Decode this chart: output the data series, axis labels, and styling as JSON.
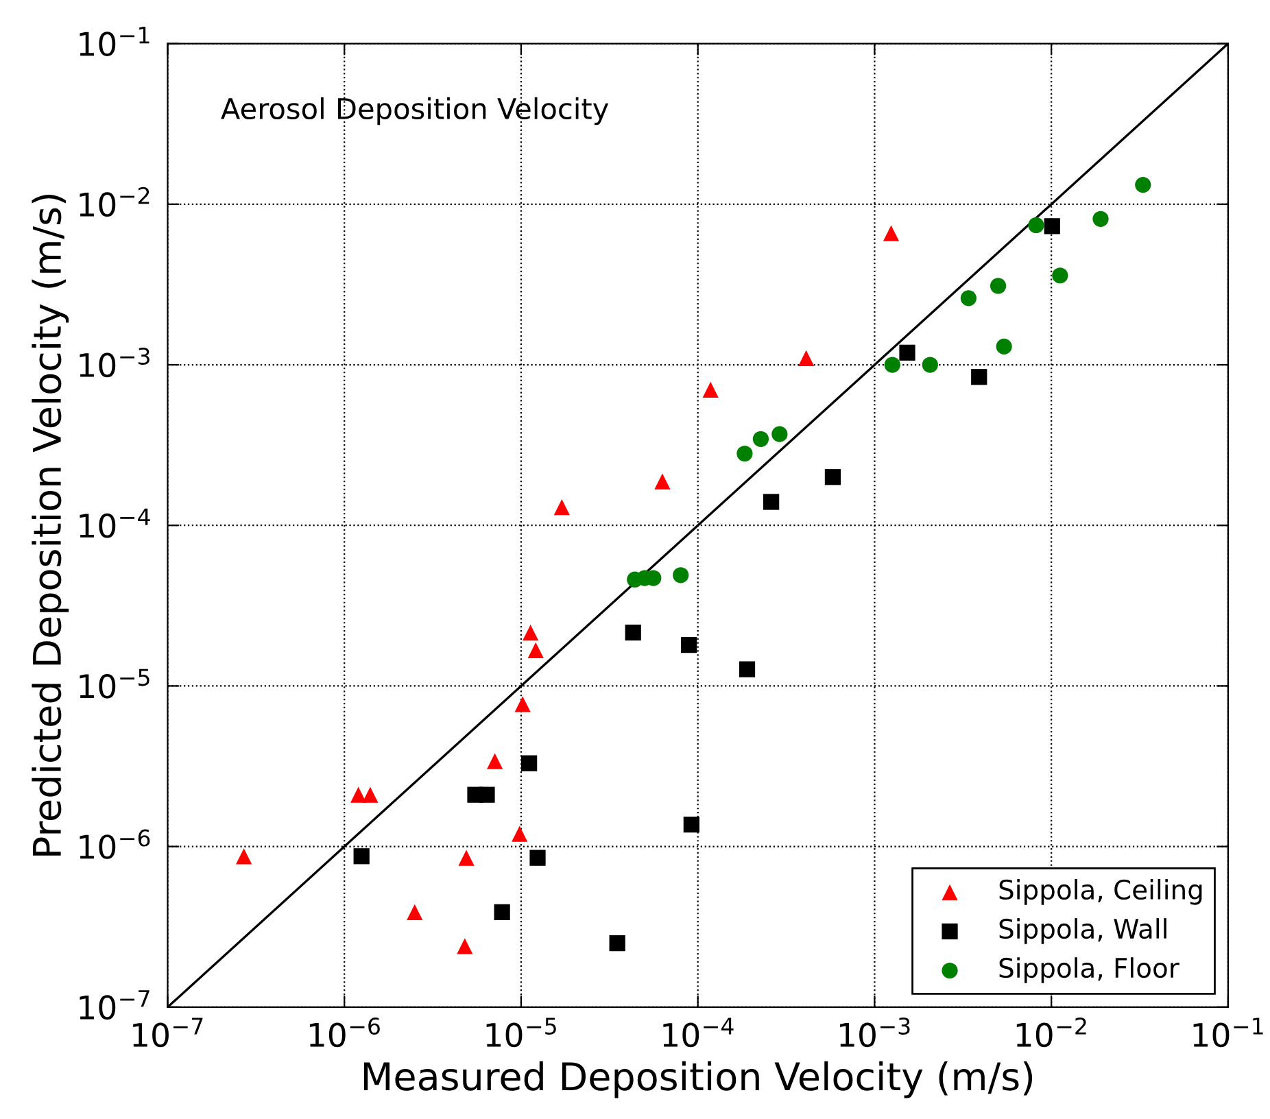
{
  "chart_data": {
    "type": "scatter",
    "xlabel": "Measured Deposition Velocity (m/s)",
    "ylabel": "Predicted Deposition Velocity (m/s)",
    "annotations": [
      "Aerosol Deposition Velocity"
    ],
    "log": "xy",
    "grid": true,
    "legend": "bottom right",
    "xlim": [
      1e-07,
      0.1
    ],
    "ylim": [
      1e-07,
      0.1
    ],
    "xticks": [
      {
        "value": 1e-07,
        "label": "10$^{−7}$"
      },
      {
        "value": 1e-06,
        "label": "10$^{−6}$"
      },
      {
        "value": 1e-05,
        "label": "10$^{−5}$"
      },
      {
        "value": 0.0001,
        "label": "10$^{−4}$"
      },
      {
        "value": 0.001,
        "label": "10$^{−3}$"
      },
      {
        "value": 0.01,
        "label": "10$^{−2}$"
      },
      {
        "value": 0.1,
        "label": "10$^{−1}$"
      }
    ],
    "yticks": [
      {
        "value": 1e-07,
        "label": "10$^{−7}$"
      },
      {
        "value": 1e-06,
        "label": "10$^{−6}$"
      },
      {
        "value": 1e-05,
        "label": "10$^{−5}$"
      },
      {
        "value": 0.0001,
        "label": "10$^{−4}$"
      },
      {
        "value": 0.001,
        "label": "10$^{−3}$"
      },
      {
        "value": 0.01,
        "label": "10$^{−2}$"
      },
      {
        "value": 0.1,
        "label": "10$^{−1}$"
      }
    ],
    "series": [
      {
        "name": "Sippola, Ceiling",
        "color": "#ff0000",
        "marker": "triangle",
        "x": [
          2.7e-07,
          1.2e-06,
          1.4e-06,
          2.5e-06,
          4.8e-06,
          4.9e-06,
          7.1e-06,
          9.8e-06,
          1.02e-05,
          1.13e-05,
          1.21e-05,
          1.7e-05,
          6.3e-05,
          0.000118,
          0.00041,
          0.00124
        ],
        "values": [
          8.7e-07,
          2.1e-06,
          2.1e-06,
          3.9e-07,
          2.4e-07,
          8.5e-07,
          3.4e-06,
          1.2e-06,
          7.7e-06,
          2.15e-05,
          1.67e-05,
          0.00013,
          0.000188,
          0.0007,
          0.0011,
          0.0066
        ]
      },
      {
        "name": "Sippola, Wall",
        "color": "#000000",
        "marker": "square",
        "x": [
          1.25e-06,
          5.5e-06,
          6.4e-06,
          1.11e-05,
          7.8e-06,
          1.24e-05,
          3.5e-05,
          4.3e-05,
          8.9e-05,
          9.2e-05,
          0.00019,
          0.00026,
          0.00058,
          0.00153,
          0.0039,
          0.0101
        ],
        "values": [
          8.7e-07,
          2.1e-06,
          2.1e-06,
          3.3e-06,
          3.9e-07,
          8.5e-07,
          2.5e-07,
          2.15e-05,
          1.8e-05,
          1.37e-06,
          1.27e-05,
          0.00014,
          0.0002,
          0.00119,
          0.00084,
          0.0073
        ]
      },
      {
        "name": "Sippola, Floor",
        "color": "#008000",
        "marker": "circle",
        "x": [
          4.4e-05,
          5e-05,
          5.6e-05,
          8e-05,
          0.000184,
          0.000227,
          0.00029,
          0.00126,
          0.00206,
          0.0034,
          0.005,
          0.0054,
          0.0082,
          0.0112,
          0.019,
          0.033
        ],
        "values": [
          4.6e-05,
          4.7e-05,
          4.7e-05,
          4.9e-05,
          0.00028,
          0.000345,
          0.00037,
          0.001,
          0.001,
          0.0026,
          0.0031,
          0.0013,
          0.0074,
          0.0036,
          0.0081,
          0.0132
        ]
      },
      {
        "type": "line",
        "color": "#000000",
        "x": [
          1e-07,
          0.1
        ],
        "values": [
          1e-07,
          0.1
        ]
      }
    ]
  }
}
